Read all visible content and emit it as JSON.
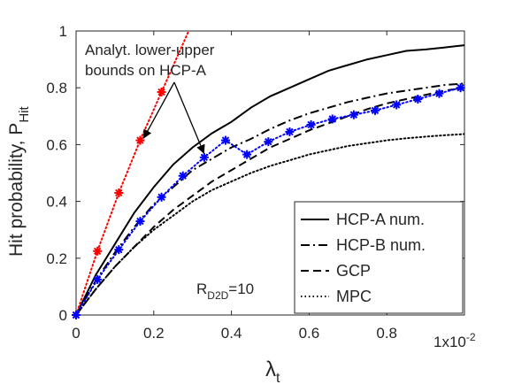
{
  "chart_data": {
    "type": "line",
    "title": "",
    "xlabel_symbol": "λ",
    "xlabel_sub": "t",
    "ylabel": "Hit probability, P",
    "ylabel_sub": "Hit",
    "x_multiplier_base": "1x10",
    "x_multiplier_exp": "-2",
    "xlim": [
      0,
      1.0
    ],
    "ylim": [
      0,
      1
    ],
    "xticks": [
      0,
      0.2,
      0.4,
      0.6,
      0.8
    ],
    "xtick_labels": [
      "0",
      "0.2",
      "0.4",
      "0.6",
      "0.8"
    ],
    "yticks": [
      0,
      0.2,
      0.4,
      0.6,
      0.8,
      1
    ],
    "ytick_labels": [
      "0",
      "0.2",
      "0.4",
      "0.6",
      "0.8",
      "1"
    ],
    "grid": false,
    "legend_position": "bottom-right",
    "annotation": {
      "text_line1": "Analyt. lower-upper",
      "text_line2": "bounds on HCP-A"
    },
    "param_label": {
      "main": "R",
      "sub": "D2D",
      "suffix": "=10"
    },
    "series": [
      {
        "name": "HCP-A num.",
        "style": "solid",
        "color": "#000000",
        "x": [
          0,
          0.05,
          0.1,
          0.15,
          0.2,
          0.25,
          0.3,
          0.35,
          0.4,
          0.45,
          0.5,
          0.55,
          0.6,
          0.65,
          0.7,
          0.75,
          0.8,
          0.85,
          0.9,
          0.95,
          1.0
        ],
        "y": [
          0,
          0.14,
          0.25,
          0.36,
          0.45,
          0.53,
          0.59,
          0.64,
          0.68,
          0.73,
          0.77,
          0.8,
          0.83,
          0.86,
          0.88,
          0.9,
          0.915,
          0.93,
          0.935,
          0.942,
          0.95
        ]
      },
      {
        "name": "HCP-B num.",
        "style": "dashdot",
        "color": "#000000",
        "x": [
          0,
          0.05,
          0.1,
          0.15,
          0.2,
          0.25,
          0.3,
          0.35,
          0.4,
          0.45,
          0.5,
          0.55,
          0.6,
          0.65,
          0.7,
          0.75,
          0.8,
          0.85,
          0.9,
          0.95,
          1.0
        ],
        "y": [
          0,
          0.12,
          0.22,
          0.31,
          0.39,
          0.45,
          0.51,
          0.55,
          0.59,
          0.62,
          0.655,
          0.685,
          0.71,
          0.73,
          0.75,
          0.765,
          0.78,
          0.79,
          0.8,
          0.81,
          0.815
        ]
      },
      {
        "name": "GCP",
        "style": "dashed",
        "color": "#000000",
        "x": [
          0,
          0.05,
          0.1,
          0.15,
          0.2,
          0.25,
          0.3,
          0.35,
          0.4,
          0.45,
          0.5,
          0.55,
          0.6,
          0.65,
          0.7,
          0.75,
          0.8,
          0.85,
          0.9,
          0.95,
          1.0
        ],
        "y": [
          0,
          0.09,
          0.17,
          0.24,
          0.31,
          0.37,
          0.42,
          0.47,
          0.51,
          0.55,
          0.59,
          0.62,
          0.65,
          0.675,
          0.7,
          0.725,
          0.745,
          0.76,
          0.775,
          0.79,
          0.8
        ]
      },
      {
        "name": "MPC",
        "style": "dotted",
        "color": "#000000",
        "x": [
          0,
          0.05,
          0.1,
          0.15,
          0.2,
          0.25,
          0.3,
          0.35,
          0.4,
          0.45,
          0.5,
          0.55,
          0.6,
          0.65,
          0.7,
          0.75,
          0.8,
          0.85,
          0.9,
          0.95,
          1.0
        ],
        "y": [
          0,
          0.09,
          0.17,
          0.24,
          0.3,
          0.35,
          0.4,
          0.44,
          0.47,
          0.5,
          0.525,
          0.545,
          0.565,
          0.58,
          0.595,
          0.605,
          0.615,
          0.622,
          0.628,
          0.633,
          0.637
        ]
      },
      {
        "name": "",
        "style": "dotted-marker",
        "color": "#ff0000",
        "x": [
          0,
          0.055,
          0.11,
          0.165,
          0.22,
          0.29
        ],
        "y": [
          0,
          0.225,
          0.43,
          0.615,
          0.785,
          1.0
        ],
        "markers": [
          0,
          0.055,
          0.11,
          0.165,
          0.22
        ]
      },
      {
        "name": "",
        "style": "dotted-marker",
        "color": "#0000ff",
        "x": [
          0,
          0.055,
          0.11,
          0.165,
          0.22,
          0.275,
          0.33,
          0.385,
          0.44,
          0.495,
          0.55,
          0.605,
          0.66,
          0.715,
          0.77,
          0.825,
          0.88,
          0.935,
          0.99
        ],
        "y": [
          0,
          0.125,
          0.23,
          0.33,
          0.415,
          0.49,
          0.555,
          0.615,
          0.565,
          0.61,
          0.645,
          0.67,
          0.69,
          0.705,
          0.72,
          0.74,
          0.76,
          0.78,
          0.8
        ],
        "markers": [
          0,
          0.055,
          0.11,
          0.165,
          0.22,
          0.275,
          0.33,
          0.385,
          0.44,
          0.495,
          0.55,
          0.605,
          0.66,
          0.715,
          0.77,
          0.825,
          0.88,
          0.935,
          0.99
        ]
      }
    ]
  }
}
